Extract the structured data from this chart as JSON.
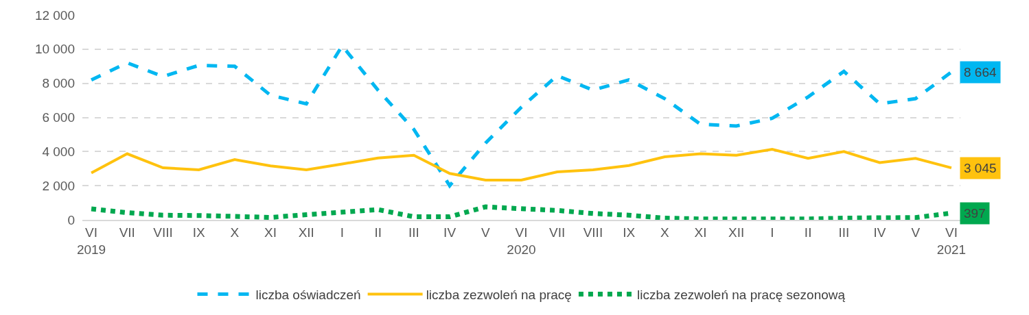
{
  "chart_data": {
    "type": "line",
    "categories": [
      "VI\n2019",
      "VII",
      "VIII",
      "IX",
      "X",
      "XI",
      "XII",
      "I",
      "II",
      "III",
      "IV",
      "V",
      "VI\n2020",
      "VII",
      "VIII",
      "IX",
      "X",
      "XI",
      "XII",
      "I",
      "II",
      "III",
      "IV",
      "V",
      "VI\n2021"
    ],
    "series": [
      {
        "name": "liczba oświadczeń",
        "color": "#00b7f1",
        "line_style": "dashed",
        "values": [
          8200,
          9200,
          8400,
          9050,
          9000,
          7300,
          6800,
          10200,
          7600,
          5300,
          2000,
          4500,
          6600,
          8450,
          7600,
          8200,
          7100,
          5600,
          5500,
          5950,
          7200,
          8700,
          6800,
          7100,
          8664
        ],
        "value_labels": [
          null,
          null,
          null,
          null,
          null,
          null,
          null,
          null,
          null,
          null,
          null,
          null,
          null,
          null,
          null,
          null,
          null,
          null,
          null,
          null,
          null,
          null,
          null,
          null,
          "8 664"
        ]
      },
      {
        "name": "liczba zezwoleń na pracę",
        "color": "#ffc20e",
        "line_style": "solid",
        "values": [
          2750,
          3870,
          3050,
          2930,
          3530,
          3160,
          2930,
          3270,
          3620,
          3780,
          2720,
          2330,
          2330,
          2810,
          2930,
          3180,
          3690,
          3870,
          3780,
          4130,
          3600,
          4000,
          3350,
          3600,
          3045
        ],
        "value_labels": [
          null,
          null,
          null,
          null,
          null,
          null,
          null,
          null,
          null,
          null,
          null,
          null,
          null,
          null,
          null,
          null,
          null,
          null,
          null,
          null,
          null,
          null,
          null,
          null,
          "3 045"
        ]
      },
      {
        "name": "liczba zezwoleń na pracę sezonową",
        "color": "#00a84f",
        "line_style": "dotted",
        "values": [
          640,
          420,
          270,
          250,
          200,
          140,
          300,
          450,
          600,
          180,
          180,
          760,
          650,
          550,
          370,
          270,
          100,
          50,
          50,
          50,
          50,
          100,
          120,
          130,
          397
        ],
        "value_labels": [
          null,
          null,
          null,
          null,
          null,
          null,
          null,
          null,
          null,
          null,
          null,
          null,
          null,
          null,
          null,
          null,
          null,
          null,
          null,
          null,
          null,
          null,
          null,
          null,
          "397"
        ]
      }
    ],
    "ylim": [
      0,
      12000
    ],
    "yticks": [
      0,
      {
        "value": 2000,
        "label": "2 000"
      },
      {
        "value": 4000,
        "label": "4 000"
      },
      {
        "value": 6000,
        "label": "6 000"
      },
      {
        "value": 8000,
        "label": "8 000"
      },
      {
        "value": 10000,
        "label": "10 000"
      },
      {
        "value": 12000,
        "label": "12 000"
      }
    ],
    "grid": "y",
    "legend": "bottom",
    "marker": "none"
  }
}
